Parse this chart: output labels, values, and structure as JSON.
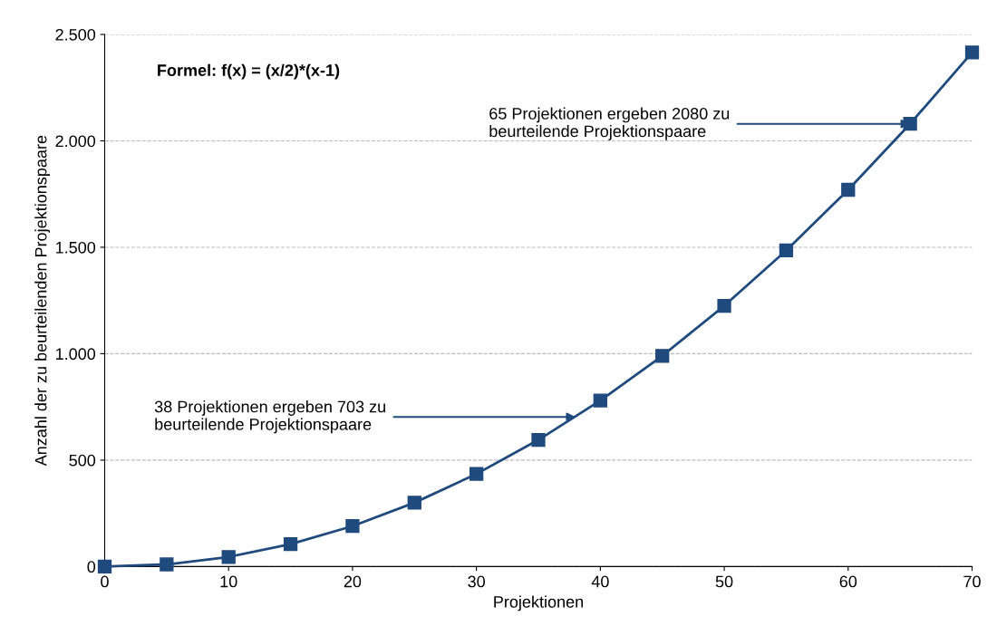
{
  "chart_data": {
    "type": "line",
    "xlabel": "Projektionen",
    "ylabel": "Anzahl der zu beurteilenden Projektionspaare",
    "x": [
      0,
      5,
      10,
      15,
      20,
      25,
      30,
      35,
      40,
      45,
      50,
      55,
      60,
      65,
      70
    ],
    "series": [
      {
        "color": "#1f4a7e",
        "values": [
          0,
          10,
          45,
          105,
          190,
          300,
          435,
          595,
          780,
          990,
          1225,
          1485,
          1770,
          2080,
          2415
        ]
      }
    ],
    "xlim": [
      0,
      70
    ],
    "xticks": [
      0,
      10,
      20,
      30,
      40,
      50,
      60,
      70
    ],
    "ylim": [
      0,
      2500
    ],
    "yticks": [
      0,
      500,
      {
        "value": 1000,
        "label": "1.000"
      },
      {
        "value": 1500,
        "label": "1.500"
      },
      {
        "value": 2000,
        "label": "2.000"
      },
      {
        "value": 2500,
        "label": "2.500"
      }
    ],
    "grid": "y",
    "marker": "square",
    "line_style": "solid",
    "legend": false,
    "annotations": [
      "Formel: f(x) = (x/2)*(x-1)",
      {
        "text": "38 Projektionen ergeben 703 zu\nbeurteilende Projektionspaare",
        "x": 38,
        "y": 703
      },
      {
        "text": "65 Projektionen ergeben 2080 zu\nbeurteilende Projektionspaare",
        "x": 65,
        "y": 2080
      }
    ]
  }
}
